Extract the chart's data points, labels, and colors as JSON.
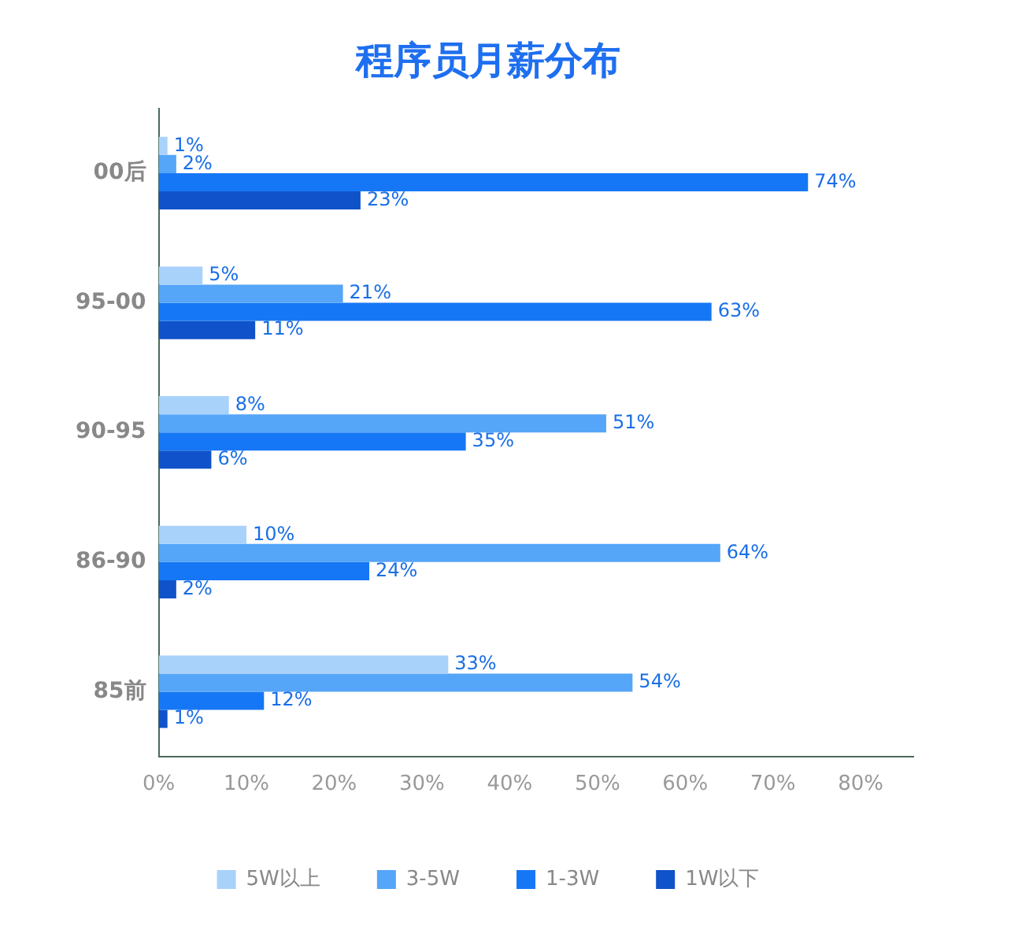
{
  "chart_data": {
    "type": "bar",
    "orientation": "horizontal",
    "title": "程序员月薪分布",
    "categories": [
      "00后",
      "95-00",
      "90-95",
      "86-90",
      "85前"
    ],
    "series": [
      {
        "name": "5W以上",
        "color": "#a9d2fb",
        "values": [
          1,
          5,
          8,
          10,
          33
        ],
        "value_labels": [
          "1%",
          "5%",
          "8%",
          "10%",
          "33%"
        ]
      },
      {
        "name": "3-5W",
        "color": "#55a5f8",
        "values": [
          2,
          21,
          51,
          64,
          54
        ],
        "value_labels": [
          "2%",
          "21%",
          "51%",
          "64%",
          "54%"
        ]
      },
      {
        "name": "1-3W",
        "color": "#1677f6",
        "values": [
          74,
          63,
          35,
          24,
          12
        ],
        "value_labels": [
          "74%",
          "63%",
          "35%",
          "24%",
          "12%"
        ]
      },
      {
        "name": "1W以下",
        "color": "#0f52c9",
        "values": [
          23,
          11,
          6,
          2,
          1
        ],
        "value_labels": [
          "23%",
          "11%",
          "6%",
          "2%",
          "1%"
        ]
      }
    ],
    "xlim": [
      0,
      86
    ],
    "xticks": [
      {
        "value": 0,
        "label": "0%"
      },
      {
        "value": 10,
        "label": "10%"
      },
      {
        "value": 20,
        "label": "20%"
      },
      {
        "value": 30,
        "label": "30%"
      },
      {
        "value": 40,
        "label": "40%"
      },
      {
        "value": 50,
        "label": "50%"
      },
      {
        "value": 60,
        "label": "60%"
      },
      {
        "value": 70,
        "label": "70%"
      },
      {
        "value": 80,
        "label": "80%"
      }
    ],
    "grid": false,
    "legend": "bottom"
  }
}
